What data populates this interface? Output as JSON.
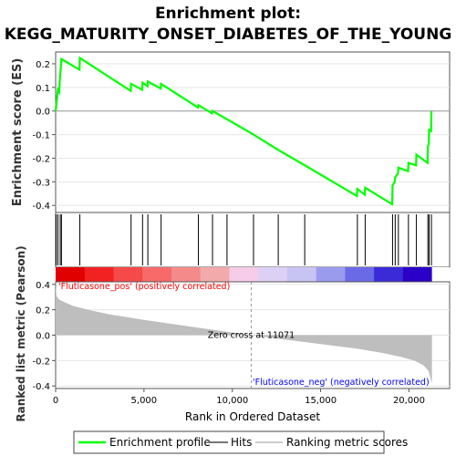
{
  "title_line1": "Enrichment plot:",
  "title_line2": "KEGG_MATURITY_ONSET_DIABETES_OF_THE_YOUNG",
  "colors": {
    "es_line": "#00ff00",
    "hits": "#000000",
    "metric_fill": "#bebebe",
    "pos_label": "#ff0000",
    "neg_label": "#0000ff"
  },
  "chart_data": {
    "type": "line",
    "es_panel": {
      "ylabel": "Enrichment score (ES)",
      "yticks": [
        "0.2",
        "0.1",
        "0.0",
        "-0.1",
        "-0.2",
        "-0.3",
        "-0.4"
      ],
      "ylim": [
        -0.43,
        0.25
      ],
      "xlim": [
        0,
        22300
      ],
      "series": [
        {
          "x": [
            0,
            130,
            200,
            260,
            330,
            1350,
            1370,
            4250,
            4270,
            4900,
            4920,
            5200,
            5220,
            5950,
            5970,
            8050,
            8080,
            8850,
            8880,
            9700,
            11200,
            12600,
            14100,
            17050,
            17080,
            17500,
            17520,
            19050,
            19070,
            19200,
            19220,
            19380,
            19400,
            19950,
            19970,
            20400,
            20420,
            21050,
            21070,
            21120,
            21140,
            21250,
            21270
          ],
          "y": [
            0.0,
            0.09,
            0.08,
            0.155,
            0.22,
            0.175,
            0.225,
            0.085,
            0.115,
            0.09,
            0.12,
            0.105,
            0.125,
            0.095,
            0.115,
            0.015,
            0.025,
            -0.01,
            0.0,
            -0.035,
            -0.1,
            -0.165,
            -0.23,
            -0.36,
            -0.33,
            -0.355,
            -0.325,
            -0.395,
            -0.315,
            -0.3,
            -0.28,
            -0.265,
            -0.24,
            -0.255,
            -0.22,
            -0.23,
            -0.185,
            -0.22,
            -0.15,
            -0.14,
            -0.08,
            -0.085,
            0.0
          ]
        }
      ]
    },
    "hits": [
      30,
      130,
      260,
      330,
      1370,
      4270,
      4920,
      5220,
      5970,
      8080,
      8880,
      9700,
      11200,
      12600,
      14100,
      17080,
      17520,
      19070,
      19220,
      19400,
      19970,
      20420,
      21070,
      21140,
      21270
    ],
    "heatbar_colors": [
      "#e00000",
      "#f22222",
      "#f54a4a",
      "#f66a6a",
      "#f58a8a",
      "#f3aaaa",
      "#f6cce8",
      "#ddd0f5",
      "#c7c3f2",
      "#9b9bee",
      "#6a6ae6",
      "#3a2ad8",
      "#2a00c8"
    ],
    "metric_panel": {
      "ylabel": "Ranked list metric (Pearson)",
      "yticks": [
        "0.4",
        "0.2",
        "0.0",
        "-0.2",
        "-0.4"
      ],
      "ylim": [
        -0.42,
        0.42
      ],
      "metric_x": [
        0,
        50,
        200,
        500,
        1000,
        2000,
        3000,
        5000,
        7000,
        9000,
        11071,
        13000,
        15000,
        17000,
        18500,
        19500,
        20300,
        20800,
        21100,
        21300
      ],
      "metric_y": [
        0.4,
        0.31,
        0.28,
        0.26,
        0.23,
        0.195,
        0.165,
        0.12,
        0.08,
        0.04,
        0.0,
        -0.035,
        -0.07,
        -0.105,
        -0.14,
        -0.17,
        -0.2,
        -0.235,
        -0.28,
        -0.38
      ],
      "zero_cross_label": "Zero cross at 11071",
      "zero_cross": 11071,
      "pos_label": "'Fluticasone_pos' (positively correlated)",
      "neg_label": "'Fluticasone_neg' (negatively correlated)"
    },
    "xaxis": {
      "xlabel": "Rank in Ordered Dataset",
      "xticks": [
        0,
        5000,
        10000,
        15000,
        20000
      ],
      "xtick_labels": [
        "0",
        "5,000",
        "10,000",
        "15,000",
        "20,000"
      ]
    },
    "legend": {
      "placement": "bottom",
      "items": [
        "Enrichment profile",
        "Hits",
        "Ranking metric scores"
      ]
    }
  }
}
